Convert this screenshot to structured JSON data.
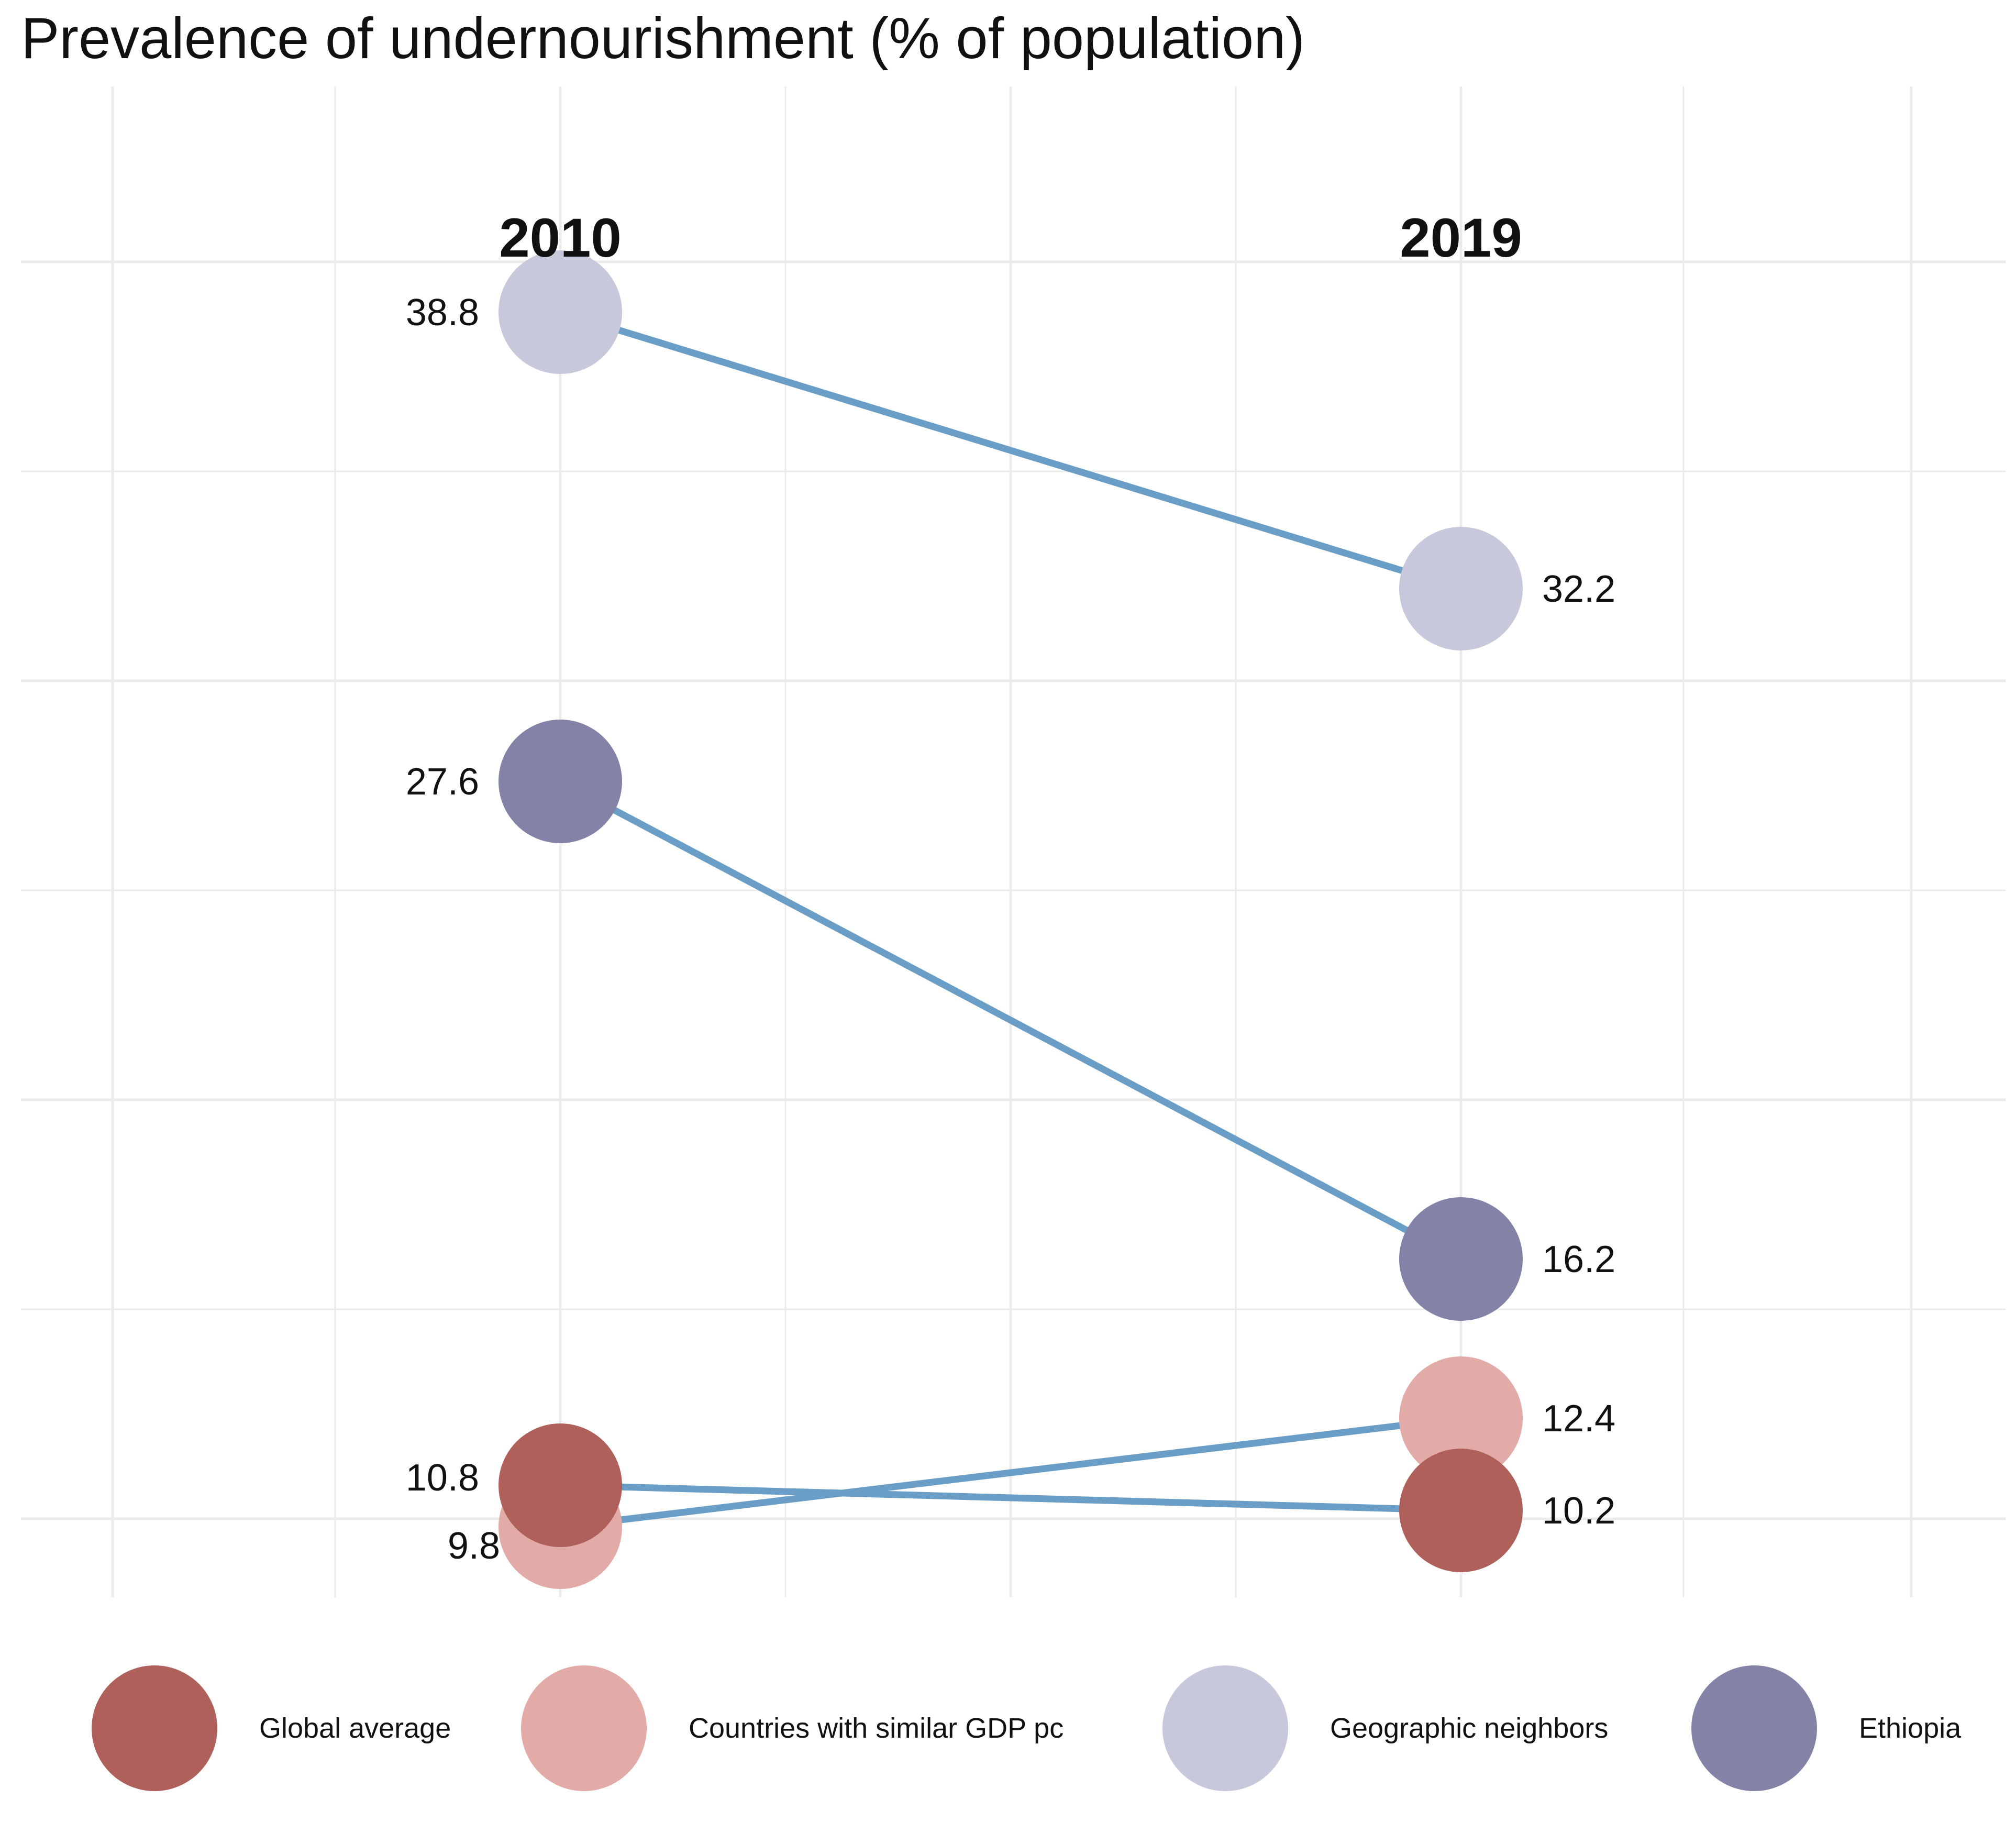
{
  "chart_data": {
    "type": "slope",
    "title": "Prevalence of undernourishment (% of population)",
    "x": [
      "2010",
      "2019"
    ],
    "series": [
      {
        "name": "Global average",
        "values": [
          10.8,
          10.2
        ],
        "color": "#b0605a"
      },
      {
        "name": "Countries with similar GDP pc",
        "values": [
          9.8,
          12.4
        ],
        "color": "#e3aba8"
      },
      {
        "name": "Geographic neighbors",
        "values": [
          38.8,
          32.2
        ],
        "color": "#c8c8dc"
      },
      {
        "name": "Ethiopia",
        "values": [
          27.6,
          16.2
        ],
        "color": "#8383a8"
      }
    ],
    "line_color": "#6a9ec6",
    "grid": true,
    "legend_position": "bottom"
  }
}
